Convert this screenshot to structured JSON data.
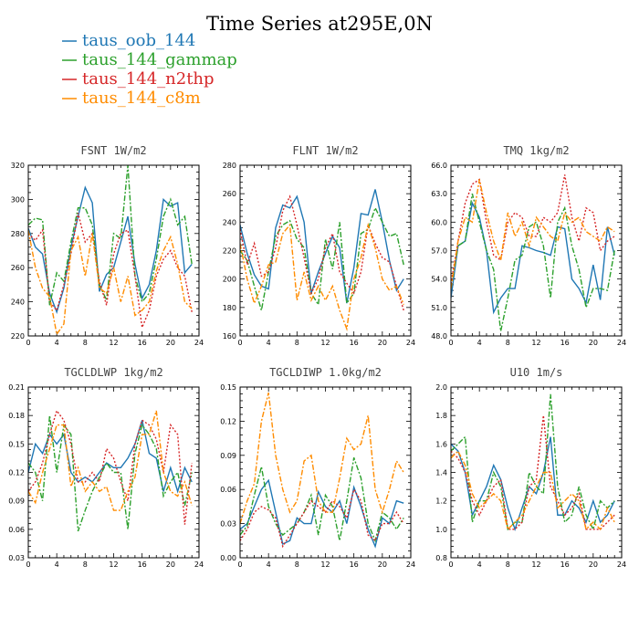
{
  "title": "Time Series at295E,0N",
  "legend": [
    {
      "name": "taus_oob_144",
      "color": "#1f77b4",
      "dash": ""
    },
    {
      "name": "taus_144_gammap",
      "color": "#2ca02c",
      "dash": "6,2,2,2"
    },
    {
      "name": "taus_144_n2thp",
      "color": "#d62728",
      "dash": "2,2"
    },
    {
      "name": "taus_144_c8m",
      "color": "#ff8c00",
      "dash": "6,2,2,2"
    }
  ],
  "chart_data": [
    {
      "type": "line",
      "title": "FSNT   1W/m2",
      "xlim": [
        0,
        24
      ],
      "xticks": [
        "0",
        "4",
        "8",
        "12",
        "16",
        "20",
        "24"
      ],
      "ylim": [
        220,
        320
      ],
      "yticks": [
        "220",
        "240",
        "260",
        "280",
        "300",
        "320"
      ],
      "x": [
        0,
        1,
        2,
        3,
        4,
        5,
        6,
        7,
        8,
        9,
        10,
        11,
        12,
        13,
        14,
        15,
        16,
        17,
        18,
        19,
        20,
        21,
        22,
        23
      ],
      "series": [
        {
          "name": "taus_oob_144",
          "values": [
            283,
            272,
            268,
            245,
            234,
            248,
            272,
            290,
            307,
            298,
            246,
            256,
            260,
            275,
            290,
            262,
            242,
            250,
            270,
            300,
            296,
            298,
            257,
            262
          ]
        },
        {
          "name": "taus_144_gammap",
          "values": [
            285,
            289,
            288,
            238,
            257,
            252,
            275,
            295,
            295,
            285,
            250,
            241,
            280,
            277,
            320,
            255,
            240,
            245,
            265,
            290,
            300,
            285,
            290,
            262
          ]
        },
        {
          "name": "taus_144_n2thp",
          "values": [
            280,
            276,
            282,
            240,
            235,
            250,
            268,
            292,
            275,
            280,
            252,
            238,
            268,
            280,
            282,
            255,
            225,
            235,
            255,
            265,
            270,
            260,
            255,
            234
          ]
        },
        {
          "name": "taus_144_c8m",
          "values": [
            282,
            260,
            248,
            243,
            221,
            227,
            270,
            278,
            255,
            280,
            248,
            245,
            260,
            240,
            255,
            232,
            235,
            240,
            258,
            270,
            278,
            262,
            240,
            236
          ]
        }
      ]
    },
    {
      "type": "line",
      "title": "FLNT   1W/m2",
      "xlim": [
        0,
        24
      ],
      "xticks": [
        "0",
        "4",
        "8",
        "12",
        "16",
        "20",
        "24"
      ],
      "ylim": [
        160,
        280
      ],
      "yticks": [
        "160",
        "180",
        "200",
        "220",
        "240",
        "260",
        "280"
      ],
      "x": [
        0,
        1,
        2,
        3,
        4,
        5,
        6,
        7,
        8,
        9,
        10,
        11,
        12,
        13,
        14,
        15,
        16,
        17,
        18,
        19,
        20,
        21,
        22,
        23
      ],
      "series": [
        {
          "name": "taus_oob_144",
          "values": [
            238,
            218,
            203,
            195,
            193,
            236,
            252,
            250,
            258,
            240,
            190,
            205,
            218,
            230,
            222,
            183,
            208,
            246,
            245,
            263,
            240,
            213,
            192,
            200
          ]
        },
        {
          "name": "taus_144_gammap",
          "values": [
            220,
            213,
            195,
            178,
            205,
            230,
            238,
            241,
            228,
            222,
            190,
            182,
            228,
            207,
            240,
            183,
            190,
            232,
            235,
            250,
            240,
            230,
            232,
            210
          ]
        },
        {
          "name": "taus_144_n2thp",
          "values": [
            235,
            210,
            225,
            202,
            205,
            222,
            248,
            258,
            238,
            215,
            190,
            200,
            222,
            232,
            205,
            197,
            190,
            205,
            238,
            225,
            215,
            212,
            195,
            178
          ]
        },
        {
          "name": "taus_144_c8m",
          "values": [
            225,
            200,
            183,
            195,
            210,
            212,
            232,
            238,
            185,
            205,
            185,
            195,
            185,
            195,
            178,
            165,
            200,
            215,
            238,
            222,
            200,
            192,
            195,
            182
          ]
        }
      ]
    },
    {
      "type": "line",
      "title": "TMQ   1kg/m2",
      "xlim": [
        0,
        24
      ],
      "xticks": [
        "0",
        "4",
        "8",
        "12",
        "16",
        "20",
        "24"
      ],
      "ylim": [
        48,
        66
      ],
      "yticks": [
        "48.0",
        "51.0",
        "54.0",
        "57.0",
        "60.0",
        "63.0",
        "66.0"
      ],
      "x": [
        0,
        1,
        2,
        3,
        4,
        5,
        6,
        7,
        8,
        9,
        10,
        11,
        12,
        13,
        14,
        15,
        16,
        17,
        18,
        19,
        20,
        21,
        22,
        23
      ],
      "series": [
        {
          "name": "taus_oob_144",
          "values": [
            52.0,
            57.5,
            58.0,
            62.0,
            60.5,
            57.0,
            50.5,
            52.0,
            53.0,
            53.0,
            57.5,
            57.3,
            57.0,
            56.8,
            56.5,
            59.5,
            59.3,
            54.0,
            53.0,
            51.5,
            55.5,
            51.8,
            59.5,
            56.5
          ]
        },
        {
          "name": "taus_144_gammap",
          "values": [
            53.0,
            57.5,
            58.0,
            63.0,
            60.0,
            57.0,
            55.0,
            48.5,
            52.0,
            56.0,
            56.5,
            59.5,
            60.0,
            57.5,
            52.0,
            60.0,
            61.5,
            57.5,
            55.0,
            51.0,
            53.0,
            53.0,
            52.8,
            57.0
          ]
        },
        {
          "name": "taus_144_n2thp",
          "values": [
            53.5,
            58.0,
            62.0,
            64.0,
            64.5,
            60.0,
            56.5,
            56.0,
            60.0,
            61.0,
            60.5,
            58.5,
            58.5,
            60.5,
            60.0,
            61.0,
            65.0,
            60.5,
            58.0,
            61.5,
            61.0,
            57.0,
            58.0,
            58.5
          ]
        },
        {
          "name": "taus_144_c8m",
          "values": [
            53.0,
            58.0,
            60.5,
            60.0,
            64.5,
            61.0,
            58.0,
            56.0,
            61.0,
            58.5,
            60.0,
            57.5,
            60.5,
            59.5,
            58.5,
            58.0,
            61.0,
            60.0,
            60.5,
            59.0,
            58.5,
            58.0,
            59.5,
            59.0
          ]
        }
      ]
    },
    {
      "type": "line",
      "title": "TGCLDLWP   1kg/m2",
      "xlim": [
        0,
        24
      ],
      "xticks": [
        "0",
        "4",
        "8",
        "12",
        "16",
        "20",
        "24"
      ],
      "ylim": [
        0.03,
        0.21
      ],
      "yticks": [
        "0.03",
        "0.06",
        "0.09",
        "0.12",
        "0.15",
        "0.18",
        "0.21"
      ],
      "x": [
        0,
        1,
        2,
        3,
        4,
        5,
        6,
        7,
        8,
        9,
        10,
        11,
        12,
        13,
        14,
        15,
        16,
        17,
        18,
        19,
        20,
        21,
        22,
        23
      ],
      "series": [
        {
          "name": "taus_oob_144",
          "values": [
            0.12,
            0.15,
            0.14,
            0.16,
            0.15,
            0.16,
            0.12,
            0.11,
            0.115,
            0.11,
            0.12,
            0.13,
            0.125,
            0.125,
            0.135,
            0.15,
            0.175,
            0.14,
            0.135,
            0.1,
            0.125,
            0.1,
            0.125,
            0.11
          ]
        },
        {
          "name": "taus_144_gammap",
          "values": [
            0.13,
            0.12,
            0.09,
            0.18,
            0.12,
            0.17,
            0.16,
            0.058,
            0.08,
            0.1,
            0.115,
            0.13,
            0.12,
            0.12,
            0.06,
            0.14,
            0.17,
            0.16,
            0.145,
            0.095,
            0.11,
            0.12,
            0.085,
            0.12
          ]
        },
        {
          "name": "taus_144_n2thp",
          "values": [
            0.1,
            0.11,
            0.13,
            0.16,
            0.185,
            0.175,
            0.15,
            0.11,
            0.11,
            0.12,
            0.11,
            0.145,
            0.135,
            0.11,
            0.09,
            0.15,
            0.175,
            0.17,
            0.155,
            0.12,
            0.17,
            0.16,
            0.065,
            0.13
          ]
        },
        {
          "name": "taus_144_c8m",
          "values": [
            0.1,
            0.088,
            0.12,
            0.145,
            0.17,
            0.17,
            0.105,
            0.125,
            0.1,
            0.11,
            0.1,
            0.105,
            0.08,
            0.08,
            0.1,
            0.115,
            0.16,
            0.16,
            0.185,
            0.12,
            0.1,
            0.095,
            0.11,
            0.085
          ]
        }
      ]
    },
    {
      "type": "line",
      "title": "TGCLDIWP   1.0kg/m2",
      "xlim": [
        0,
        24
      ],
      "xticks": [
        "0",
        "4",
        "8",
        "12",
        "16",
        "20",
        "24"
      ],
      "ylim": [
        0.0,
        0.15
      ],
      "yticks": [
        "0.00",
        "0.03",
        "0.06",
        "0.09",
        "0.12",
        "0.15"
      ],
      "x": [
        0,
        1,
        2,
        3,
        4,
        5,
        6,
        7,
        8,
        9,
        10,
        11,
        12,
        13,
        14,
        15,
        16,
        17,
        18,
        19,
        20,
        21,
        22,
        23
      ],
      "series": [
        {
          "name": "taus_oob_144",
          "values": [
            0.025,
            0.03,
            0.045,
            0.06,
            0.068,
            0.04,
            0.012,
            0.015,
            0.035,
            0.03,
            0.03,
            0.058,
            0.045,
            0.04,
            0.05,
            0.03,
            0.062,
            0.045,
            0.025,
            0.01,
            0.035,
            0.03,
            0.05,
            0.048
          ]
        },
        {
          "name": "taus_144_gammap",
          "values": [
            0.02,
            0.028,
            0.055,
            0.08,
            0.045,
            0.03,
            0.02,
            0.025,
            0.03,
            0.04,
            0.055,
            0.02,
            0.055,
            0.045,
            0.015,
            0.05,
            0.088,
            0.07,
            0.03,
            0.015,
            0.04,
            0.035,
            0.025,
            0.035
          ]
        },
        {
          "name": "taus_144_n2thp",
          "values": [
            0.015,
            0.025,
            0.04,
            0.045,
            0.042,
            0.035,
            0.01,
            0.02,
            0.03,
            0.04,
            0.05,
            0.045,
            0.04,
            0.05,
            0.045,
            0.035,
            0.06,
            0.05,
            0.02,
            0.015,
            0.03,
            0.03,
            0.04,
            0.03
          ]
        },
        {
          "name": "taus_144_c8m",
          "values": [
            0.03,
            0.05,
            0.065,
            0.12,
            0.145,
            0.09,
            0.06,
            0.04,
            0.05,
            0.085,
            0.09,
            0.05,
            0.04,
            0.04,
            0.07,
            0.105,
            0.095,
            0.1,
            0.125,
            0.06,
            0.04,
            0.06,
            0.085,
            0.075
          ]
        }
      ]
    },
    {
      "type": "line",
      "title": "U10   1m/s",
      "xlim": [
        0,
        24
      ],
      "xticks": [
        "0",
        "4",
        "8",
        "12",
        "16",
        "20",
        "24"
      ],
      "ylim": [
        0.8,
        2.0
      ],
      "yticks": [
        "0.8",
        "1.0",
        "1.2",
        "1.4",
        "1.6",
        "1.8",
        "2.0"
      ],
      "x": [
        0,
        1,
        2,
        3,
        4,
        5,
        6,
        7,
        8,
        9,
        10,
        11,
        12,
        13,
        14,
        15,
        16,
        17,
        18,
        19,
        20,
        21,
        22,
        23
      ],
      "series": [
        {
          "name": "taus_oob_144",
          "values": [
            1.6,
            1.55,
            1.4,
            1.1,
            1.2,
            1.3,
            1.45,
            1.35,
            1.15,
            1.0,
            1.15,
            1.3,
            1.25,
            1.4,
            1.65,
            1.1,
            1.1,
            1.2,
            1.15,
            1.05,
            1.2,
            1.05,
            1.1,
            1.2
          ]
        },
        {
          "name": "taus_144_gammap",
          "values": [
            1.55,
            1.6,
            1.65,
            1.05,
            1.2,
            1.2,
            1.4,
            1.3,
            1.0,
            1.05,
            1.05,
            1.4,
            1.3,
            1.25,
            1.95,
            1.3,
            1.05,
            1.1,
            1.3,
            1.1,
            1.0,
            1.2,
            1.15,
            1.2
          ]
        },
        {
          "name": "taus_144_n2thp",
          "values": [
            1.55,
            1.5,
            1.4,
            1.2,
            1.1,
            1.2,
            1.3,
            1.35,
            1.0,
            1.0,
            1.05,
            1.3,
            1.35,
            1.8,
            1.3,
            1.2,
            1.1,
            1.15,
            1.25,
            1.0,
            1.0,
            1.0,
            1.05,
            1.1
          ]
        },
        {
          "name": "taus_144_c8m",
          "values": [
            1.5,
            1.55,
            1.45,
            1.25,
            1.15,
            1.2,
            1.25,
            1.2,
            1.0,
            1.05,
            1.1,
            1.2,
            1.3,
            1.4,
            1.4,
            1.15,
            1.2,
            1.25,
            1.2,
            1.0,
            1.05,
            1.0,
            1.15,
            1.05
          ]
        }
      ]
    }
  ]
}
